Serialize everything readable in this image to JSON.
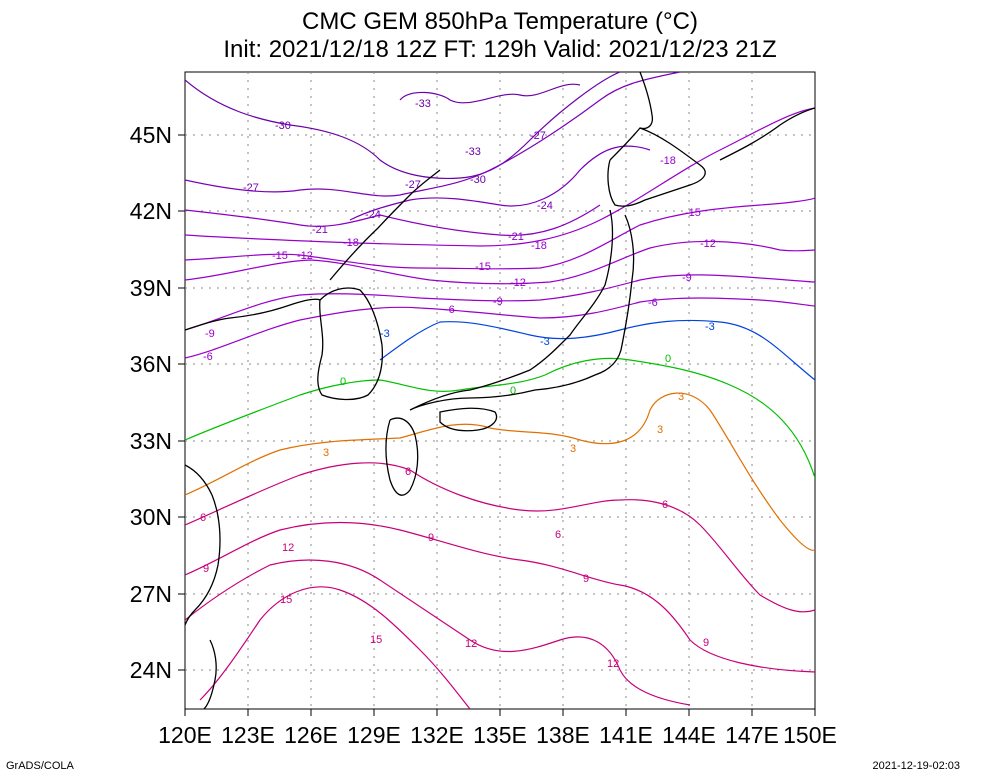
{
  "title": {
    "line1": "CMC GEM 850hPa Temperature (°C)",
    "line2": "Init: 2021/12/18 12Z  FT: 129h  Valid: 2021/12/23 21Z"
  },
  "footer": {
    "left": "GrADS/COLA",
    "right": "2021-12-19-02:03"
  },
  "map": {
    "lon_range": [
      120,
      150
    ],
    "lat_range": [
      22.5,
      47.5
    ],
    "lon_ticks": [
      "120E",
      "123E",
      "126E",
      "129E",
      "132E",
      "135E",
      "138E",
      "141E",
      "144E",
      "147E",
      "150E"
    ],
    "lat_ticks": [
      "24N",
      "27N",
      "30N",
      "33N",
      "36N",
      "39N",
      "42N",
      "45N"
    ],
    "grid": "dotted",
    "colors": {
      "very_cold": "#6a00a8",
      "cold": "#9900cc",
      "minus3": "#0044dd",
      "zero": "#00c000",
      "plus3": "#e07000",
      "warm": "#c8007a",
      "coast": "#000000"
    }
  },
  "contours": [
    {
      "value": "-33",
      "color": "#6a00a8",
      "labels": [
        "-33",
        "-33"
      ]
    },
    {
      "value": "-30",
      "color": "#6a00a8",
      "labels": [
        "-30",
        "-30"
      ]
    },
    {
      "value": "-27",
      "color": "#7a00b8",
      "labels": [
        "-27",
        "-27",
        "-27"
      ]
    },
    {
      "value": "-24",
      "color": "#7a00b8",
      "labels": [
        "-24",
        "-24"
      ]
    },
    {
      "value": "-21",
      "color": "#8a00c0",
      "labels": [
        "-21",
        "-21"
      ]
    },
    {
      "value": "-18",
      "color": "#9900cc",
      "labels": [
        "-18",
        "-18",
        "-18"
      ]
    },
    {
      "value": "-15",
      "color": "#9900cc",
      "labels": [
        "-15",
        "-15",
        "-15"
      ]
    },
    {
      "value": "-12",
      "color": "#9900cc",
      "labels": [
        "-12",
        "-12",
        "-12"
      ]
    },
    {
      "value": "-9",
      "color": "#9900cc",
      "labels": [
        "-9",
        "-9",
        "-9"
      ]
    },
    {
      "value": "-6",
      "color": "#9900cc",
      "labels": [
        "-6",
        "-6",
        "-6"
      ]
    },
    {
      "value": "-3",
      "color": "#0044dd",
      "labels": [
        "-3",
        "-3",
        "-3"
      ]
    },
    {
      "value": "0",
      "color": "#00c000",
      "labels": [
        "0",
        "0",
        "0"
      ]
    },
    {
      "value": "3",
      "color": "#e07000",
      "labels": [
        "3",
        "3",
        "3",
        "3"
      ]
    },
    {
      "value": "6",
      "color": "#c8007a",
      "labels": [
        "6",
        "6",
        "6",
        "6"
      ]
    },
    {
      "value": "9",
      "color": "#c8007a",
      "labels": [
        "9",
        "9",
        "9",
        "9"
      ]
    },
    {
      "value": "12",
      "color": "#c8007a",
      "labels": [
        "12",
        "12",
        "12"
      ]
    },
    {
      "value": "15",
      "color": "#c8007a",
      "labels": [
        "15",
        "15"
      ]
    }
  ]
}
